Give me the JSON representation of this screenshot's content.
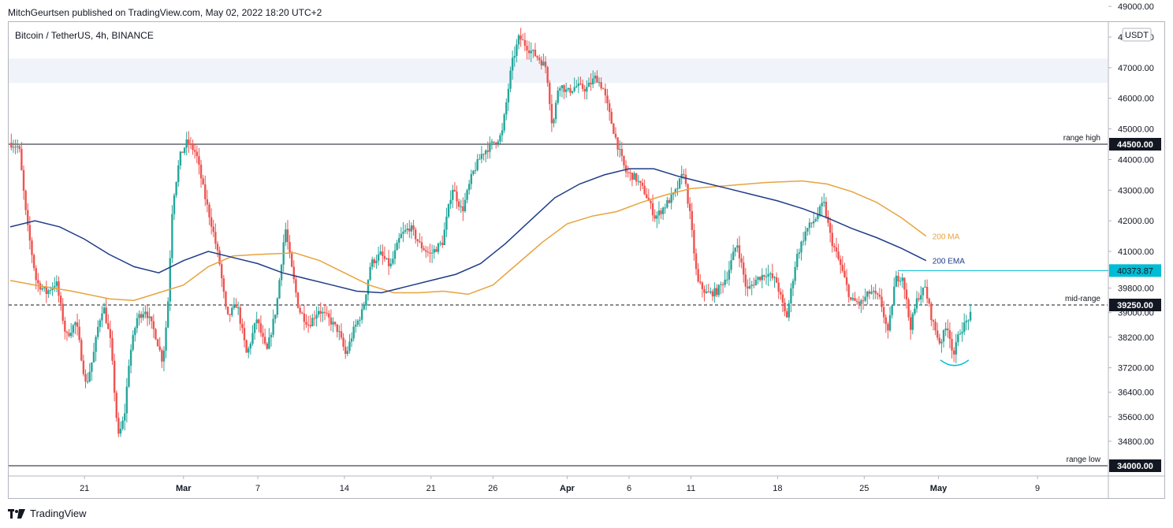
{
  "header": {
    "published": "MitchGeurtsen published on TradingView.com, May 02, 2022 18:20 UTC+2"
  },
  "symbol_line": "Bitcoin / TetherUS, 4h, BINANCE",
  "footer": {
    "brand": "TradingView",
    "logo_icon": "tradingview-logo-icon"
  },
  "chart_data": {
    "type": "candlestick",
    "currency": "USDT",
    "ylim": [
      34000,
      49000
    ],
    "y_ticks": [
      "49000.00",
      "48000.00",
      "47000.00",
      "46000.00",
      "45000.00",
      "44000.00",
      "43000.00",
      "42000.00",
      "41000.00",
      "39800.00",
      "39000.00",
      "38200.00",
      "37200.00",
      "36400.00",
      "35600.00",
      "34800.00"
    ],
    "x_ticks": [
      {
        "label": "21",
        "day": 21
      },
      {
        "label": "Mar",
        "day": 29
      },
      {
        "label": "7",
        "day": 35
      },
      {
        "label": "14",
        "day": 42
      },
      {
        "label": "21",
        "day": 49
      },
      {
        "label": "26",
        "day": 54
      },
      {
        "label": "Apr",
        "day": 60
      },
      {
        "label": "6",
        "day": 65
      },
      {
        "label": "11",
        "day": 70
      },
      {
        "label": "18",
        "day": 77
      },
      {
        "label": "25",
        "day": 84
      },
      {
        "label": "May",
        "day": 90
      },
      {
        "label": "9",
        "day": 98
      }
    ],
    "x_range_days": [
      15,
      98
    ],
    "levels": [
      {
        "name": "range high",
        "value": 44500,
        "badge": "44500.00",
        "style": "solid"
      },
      {
        "name": "mid-range",
        "value": 39250,
        "badge": "39250.00",
        "style": "dashed"
      },
      {
        "name": "range low",
        "value": 34000,
        "badge": "34000.00",
        "style": "solid"
      }
    ],
    "current_price": {
      "value": 40373.87,
      "badge": "40373.87",
      "from_day": 86.7
    },
    "resistance_zone": [
      46500,
      47300
    ],
    "indicators": [
      {
        "name": "200 MA",
        "color": "#e8a33d",
        "points": [
          [
            15,
            40050
          ],
          [
            17,
            39900
          ],
          [
            20,
            39700
          ],
          [
            23,
            39450
          ],
          [
            25,
            39400
          ],
          [
            27,
            39650
          ],
          [
            29,
            39900
          ],
          [
            31,
            40500
          ],
          [
            33,
            40850
          ],
          [
            35,
            40900
          ],
          [
            38,
            40950
          ],
          [
            40,
            40700
          ],
          [
            42,
            40300
          ],
          [
            44,
            39900
          ],
          [
            46,
            39650
          ],
          [
            48,
            39650
          ],
          [
            50,
            39700
          ],
          [
            52,
            39600
          ],
          [
            54,
            39900
          ],
          [
            56,
            40600
          ],
          [
            58,
            41300
          ],
          [
            60,
            41900
          ],
          [
            62,
            42150
          ],
          [
            64,
            42300
          ],
          [
            66,
            42600
          ],
          [
            68,
            42850
          ],
          [
            70,
            43050
          ],
          [
            73,
            43150
          ],
          [
            76,
            43250
          ],
          [
            79,
            43300
          ],
          [
            81,
            43200
          ],
          [
            83,
            42950
          ],
          [
            85,
            42600
          ],
          [
            87,
            42100
          ],
          [
            89,
            41500
          ]
        ]
      },
      {
        "name": "200 EMA",
        "color": "#1f3c88",
        "points": [
          [
            15,
            41800
          ],
          [
            17,
            42000
          ],
          [
            19,
            41800
          ],
          [
            21,
            41400
          ],
          [
            23,
            40900
          ],
          [
            25,
            40500
          ],
          [
            27,
            40300
          ],
          [
            29,
            40700
          ],
          [
            31,
            41000
          ],
          [
            33,
            40800
          ],
          [
            35,
            40600
          ],
          [
            37,
            40300
          ],
          [
            39,
            40100
          ],
          [
            41,
            39900
          ],
          [
            43,
            39700
          ],
          [
            45,
            39650
          ],
          [
            47,
            39850
          ],
          [
            49,
            40050
          ],
          [
            51,
            40250
          ],
          [
            53,
            40600
          ],
          [
            55,
            41250
          ],
          [
            57,
            42000
          ],
          [
            59,
            42750
          ],
          [
            61,
            43200
          ],
          [
            63,
            43500
          ],
          [
            65,
            43700
          ],
          [
            67,
            43700
          ],
          [
            69,
            43450
          ],
          [
            71,
            43250
          ],
          [
            73,
            43050
          ],
          [
            75,
            42850
          ],
          [
            77,
            42650
          ],
          [
            79,
            42400
          ],
          [
            81,
            42100
          ],
          [
            83,
            41750
          ],
          [
            85,
            41450
          ],
          [
            87,
            41100
          ],
          [
            89,
            40700
          ]
        ]
      }
    ],
    "price_path": [
      [
        15,
        44550
      ],
      [
        15.8,
        44400
      ],
      [
        16.4,
        42000
      ],
      [
        17.2,
        40000
      ],
      [
        18,
        39650
      ],
      [
        18.8,
        40000
      ],
      [
        19.6,
        38200
      ],
      [
        20.4,
        38700
      ],
      [
        21.2,
        36600
      ],
      [
        21.8,
        37600
      ],
      [
        22.2,
        38600
      ],
      [
        22.6,
        39250
      ],
      [
        23.2,
        38000
      ],
      [
        23.8,
        34900
      ],
      [
        24.3,
        35600
      ],
      [
        24.7,
        37500
      ],
      [
        25.3,
        38800
      ],
      [
        26,
        39100
      ],
      [
        26.8,
        38300
      ],
      [
        27.4,
        37400
      ],
      [
        27.8,
        39100
      ],
      [
        28.2,
        42600
      ],
      [
        28.8,
        44100
      ],
      [
        29.4,
        44600
      ],
      [
        30.1,
        44200
      ],
      [
        30.8,
        42800
      ],
      [
        31.4,
        41800
      ],
      [
        32,
        40600
      ],
      [
        32.6,
        38800
      ],
      [
        33.4,
        39300
      ],
      [
        34.2,
        37600
      ],
      [
        35,
        38800
      ],
      [
        35.8,
        37700
      ],
      [
        36.6,
        39200
      ],
      [
        37.3,
        41800
      ],
      [
        37.8,
        40500
      ],
      [
        38.4,
        39100
      ],
      [
        39.2,
        38600
      ],
      [
        40,
        39100
      ],
      [
        40.8,
        38800
      ],
      [
        41.6,
        38400
      ],
      [
        42.2,
        37600
      ],
      [
        42.8,
        38400
      ],
      [
        43.6,
        39100
      ],
      [
        44.2,
        40600
      ],
      [
        45,
        40900
      ],
      [
        45.8,
        40500
      ],
      [
        46.6,
        41500
      ],
      [
        47.4,
        41800
      ],
      [
        48.2,
        41200
      ],
      [
        49,
        40900
      ],
      [
        50,
        41300
      ],
      [
        50.8,
        43100
      ],
      [
        51.6,
        42300
      ],
      [
        52.4,
        43500
      ],
      [
        53.2,
        44200
      ],
      [
        54,
        44500
      ],
      [
        54.8,
        44800
      ],
      [
        55.6,
        47100
      ],
      [
        56.2,
        48000
      ],
      [
        57,
        47600
      ],
      [
        57.8,
        47300
      ],
      [
        58.4,
        47000
      ],
      [
        58.9,
        45000
      ],
      [
        59.4,
        46500
      ],
      [
        60.1,
        46200
      ],
      [
        60.8,
        46400
      ],
      [
        61.6,
        46300
      ],
      [
        62.4,
        46700
      ],
      [
        63,
        46300
      ],
      [
        63.6,
        45300
      ],
      [
        64.2,
        44400
      ],
      [
        64.8,
        43600
      ],
      [
        65.6,
        43400
      ],
      [
        66.4,
        42900
      ],
      [
        67.2,
        42100
      ],
      [
        68,
        42500
      ],
      [
        68.8,
        42900
      ],
      [
        69.5,
        43600
      ],
      [
        70,
        42200
      ],
      [
        70.6,
        40000
      ],
      [
        71.4,
        39600
      ],
      [
        72.2,
        39700
      ],
      [
        73,
        40200
      ],
      [
        73.8,
        41300
      ],
      [
        74.6,
        39700
      ],
      [
        75.4,
        40100
      ],
      [
        76.2,
        40300
      ],
      [
        77,
        40000
      ],
      [
        77.8,
        38800
      ],
      [
        78.6,
        40800
      ],
      [
        79.4,
        41700
      ],
      [
        80.2,
        42100
      ],
      [
        80.8,
        42600
      ],
      [
        81.4,
        41400
      ],
      [
        82.2,
        40500
      ],
      [
        83,
        39400
      ],
      [
        83.8,
        39300
      ],
      [
        84.6,
        39700
      ],
      [
        85.4,
        39400
      ],
      [
        86,
        38300
      ],
      [
        86.6,
        40100
      ],
      [
        87.2,
        40200
      ],
      [
        87.8,
        38500
      ],
      [
        88.4,
        39500
      ],
      [
        89,
        39800
      ],
      [
        89.6,
        38700
      ],
      [
        90.2,
        38000
      ],
      [
        90.8,
        38600
      ],
      [
        91.3,
        37600
      ],
      [
        91.8,
        38400
      ],
      [
        92.2,
        38600
      ],
      [
        92.6,
        38900
      ]
    ]
  }
}
